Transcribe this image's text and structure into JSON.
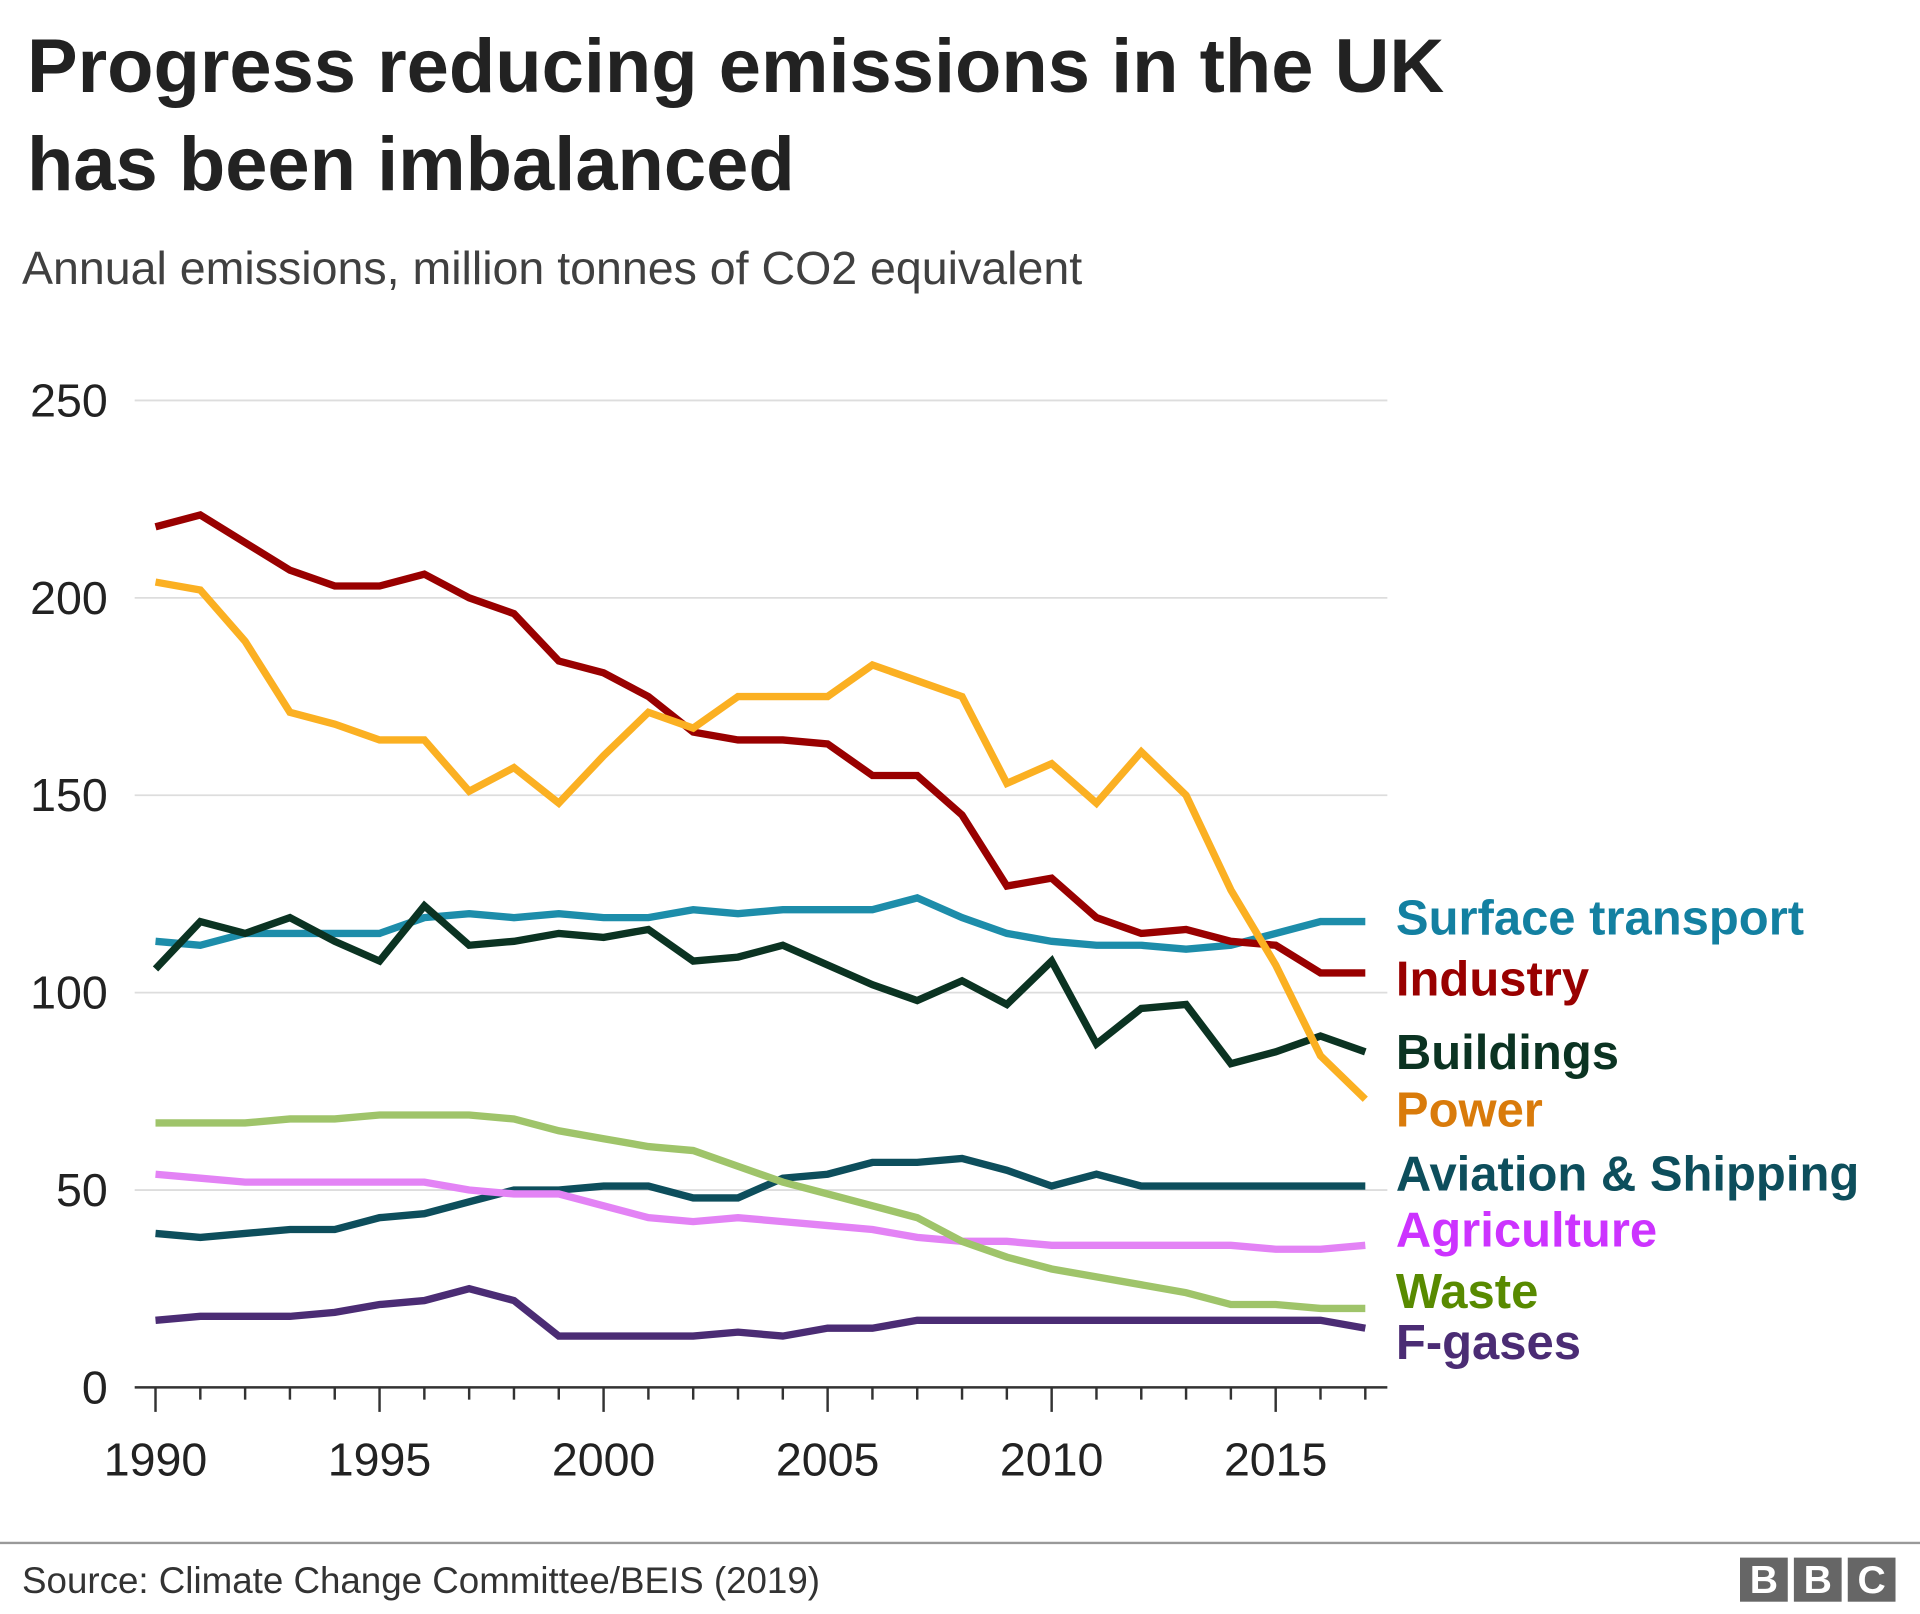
{
  "chart_data": {
    "type": "line",
    "title": "Progress reducing emissions in the UK has been imbalanced",
    "title_lines": [
      "Progress reducing emissions in the UK",
      "has been imbalanced"
    ],
    "subtitle": "Annual emissions, million tonnes of CO2 equivalent",
    "source": "Source: Climate Change Committee/BEIS (2019)",
    "logo": "BBC",
    "xlim": [
      1990,
      2017
    ],
    "ylim": [
      0,
      250
    ],
    "x_ticks": [
      1990,
      1995,
      2000,
      2005,
      2010,
      2015
    ],
    "y_ticks": [
      0,
      50,
      100,
      150,
      200,
      250
    ],
    "grid": "horizontal",
    "legend": "direct labels at right",
    "x": [
      1990,
      1991,
      1992,
      1993,
      1994,
      1995,
      1996,
      1997,
      1998,
      1999,
      2000,
      2001,
      2002,
      2003,
      2004,
      2005,
      2006,
      2007,
      2008,
      2009,
      2010,
      2011,
      2012,
      2013,
      2014,
      2015,
      2016,
      2017
    ],
    "series": [
      {
        "name": "Surface transport",
        "color": "#1d8daa",
        "label_color": "#1380a1",
        "values": [
          113,
          112,
          115,
          115,
          115,
          115,
          119,
          120,
          119,
          120,
          119,
          119,
          121,
          120,
          121,
          121,
          121,
          124,
          119,
          115,
          113,
          112,
          112,
          111,
          112,
          115,
          118,
          118
        ]
      },
      {
        "name": "Industry",
        "color": "#990000",
        "label_color": "#990000",
        "values": [
          218,
          221,
          214,
          207,
          203,
          203,
          206,
          200,
          196,
          184,
          181,
          175,
          166,
          164,
          164,
          163,
          155,
          155,
          145,
          127,
          129,
          119,
          115,
          116,
          113,
          112,
          105,
          105
        ]
      },
      {
        "name": "Buildings",
        "color": "#0b3322",
        "label_color": "#0b3322",
        "values": [
          106,
          118,
          115,
          119,
          113,
          108,
          122,
          112,
          113,
          115,
          114,
          116,
          108,
          109,
          112,
          107,
          102,
          98,
          103,
          97,
          108,
          87,
          96,
          97,
          82,
          85,
          89,
          85
        ]
      },
      {
        "name": "Power",
        "color": "#fbb022",
        "label_color": "#d97b0b",
        "values": [
          204,
          202,
          189,
          171,
          168,
          164,
          164,
          151,
          157,
          148,
          160,
          171,
          167,
          175,
          175,
          175,
          183,
          179,
          175,
          153,
          158,
          148,
          161,
          150,
          126,
          107,
          84,
          73
        ]
      },
      {
        "name": "Aviation & Shipping",
        "color": "#0d4e5c",
        "label_color": "#0d4e5c",
        "values": [
          39,
          38,
          39,
          40,
          40,
          43,
          44,
          47,
          50,
          50,
          51,
          51,
          48,
          48,
          53,
          54,
          57,
          57,
          58,
          55,
          51,
          54,
          51,
          51,
          51,
          51,
          51,
          51
        ]
      },
      {
        "name": "Agriculture",
        "color": "#e383f5",
        "label_color": "#cc33ff",
        "values": [
          54,
          53,
          52,
          52,
          52,
          52,
          52,
          50,
          49,
          49,
          46,
          43,
          42,
          43,
          42,
          41,
          40,
          38,
          37,
          37,
          36,
          36,
          36,
          36,
          36,
          35,
          35,
          36
        ]
      },
      {
        "name": "Waste",
        "color": "#9fc46a",
        "label_color": "#588a00",
        "values": [
          67,
          67,
          67,
          68,
          68,
          69,
          69,
          69,
          68,
          65,
          63,
          61,
          60,
          56,
          52,
          49,
          46,
          43,
          37,
          33,
          30,
          28,
          26,
          24,
          21,
          21,
          20,
          20
        ]
      },
      {
        "name": "F-gases",
        "color": "#4b2c74",
        "label_color": "#4b2c74",
        "values": [
          17,
          18,
          18,
          18,
          19,
          21,
          22,
          25,
          22,
          13,
          13,
          13,
          13,
          14,
          13,
          15,
          15,
          17,
          17,
          17,
          17,
          17,
          17,
          17,
          17,
          17,
          17,
          15
        ]
      }
    ]
  }
}
